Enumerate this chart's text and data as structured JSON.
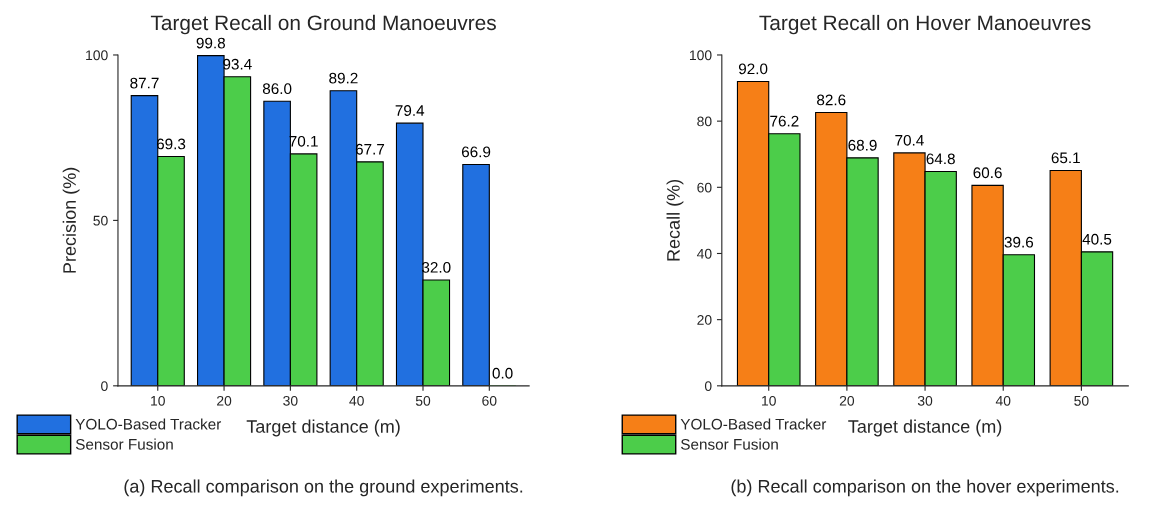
{
  "chart_data": [
    {
      "type": "bar",
      "title": "Target Recall on Ground Manoeuvres",
      "xlabel": "Target distance (m)",
      "ylabel": "Precision (%)",
      "categories": [
        "10",
        "20",
        "30",
        "40",
        "50",
        "60"
      ],
      "series": [
        {
          "name": "YOLO-Based Tracker",
          "color": "#2170e0",
          "values": [
            87.7,
            99.8,
            86.0,
            89.2,
            79.4,
            66.9
          ],
          "value_labels": [
            "87.7",
            "99.8",
            "86.0",
            "89.2",
            "79.4",
            "66.9"
          ]
        },
        {
          "name": "Sensor Fusion",
          "color": "#4ccd4a",
          "values": [
            69.3,
            93.4,
            70.1,
            67.7,
            32.0,
            0.0
          ],
          "value_labels": [
            "69.3",
            "93.4",
            "70.1",
            "67.7",
            "32.0",
            "0.0"
          ]
        }
      ],
      "ylim": [
        0,
        100
      ],
      "yticks": [
        0,
        50,
        100
      ],
      "grid": false,
      "legend": "bottom left",
      "annotations": [
        "(a) Recall comparison on the ground experiments."
      ]
    },
    {
      "type": "bar",
      "title": "Target Recall on Hover Manoeuvres",
      "xlabel": "Target distance (m)",
      "ylabel": "Recall (%)",
      "categories": [
        "10",
        "20",
        "30",
        "40",
        "50"
      ],
      "series": [
        {
          "name": "YOLO-Based Tracker",
          "color": "#f67f17",
          "values": [
            92.0,
            82.6,
            70.4,
            60.6,
            65.1
          ],
          "value_labels": [
            "92.0",
            "82.6",
            "70.4",
            "60.6",
            "65.1"
          ]
        },
        {
          "name": "Sensor Fusion",
          "color": "#4ccd4a",
          "values": [
            76.2,
            68.9,
            64.8,
            39.6,
            40.5
          ],
          "value_labels": [
            "76.2",
            "68.9",
            "64.8",
            "39.6",
            "40.5"
          ]
        }
      ],
      "ylim": [
        0,
        100
      ],
      "yticks": [
        0,
        20,
        40,
        60,
        80,
        100
      ],
      "grid": false,
      "legend": "bottom left",
      "annotations": [
        "(b) Recall comparison on the hover experiments."
      ]
    }
  ]
}
